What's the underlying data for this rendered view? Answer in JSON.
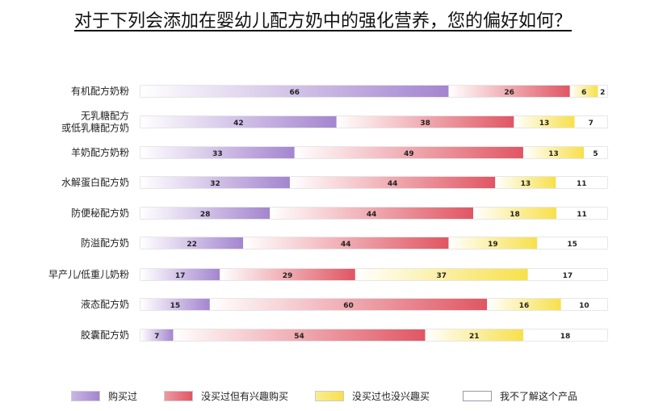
{
  "chart_data": {
    "type": "bar",
    "orientation": "horizontal",
    "stacked": true,
    "title": "对于下列会添加在婴幼儿配方奶中的强化营养，您的偏好如何？",
    "categories": [
      "有机配方奶粉",
      "无乳糖配方\n或低乳糖配方奶",
      "羊奶配方奶粉",
      "水解蛋白配方奶",
      "防便秘配方奶",
      "防溢配方奶",
      "早产儿/低重儿奶粉",
      "液态配方奶",
      "胶囊配方奶"
    ],
    "series": [
      {
        "name": "购买过",
        "color": "#a485cf",
        "values": [
          66,
          42,
          33,
          32,
          28,
          22,
          17,
          15,
          7
        ]
      },
      {
        "name": "没买过但有兴趣购买",
        "color": "#e05663",
        "values": [
          26,
          38,
          49,
          44,
          44,
          44,
          29,
          60,
          54
        ]
      },
      {
        "name": "没买过也没兴趣买",
        "color": "#f7e04a",
        "values": [
          6,
          13,
          13,
          13,
          18,
          19,
          37,
          16,
          21
        ]
      },
      {
        "name": "我不了解这个产品",
        "color": "#ffffff",
        "values": [
          2,
          7,
          5,
          11,
          11,
          15,
          17,
          10,
          18
        ]
      }
    ],
    "xlim": [
      0,
      100
    ],
    "grid": false,
    "legend": "bottom"
  }
}
